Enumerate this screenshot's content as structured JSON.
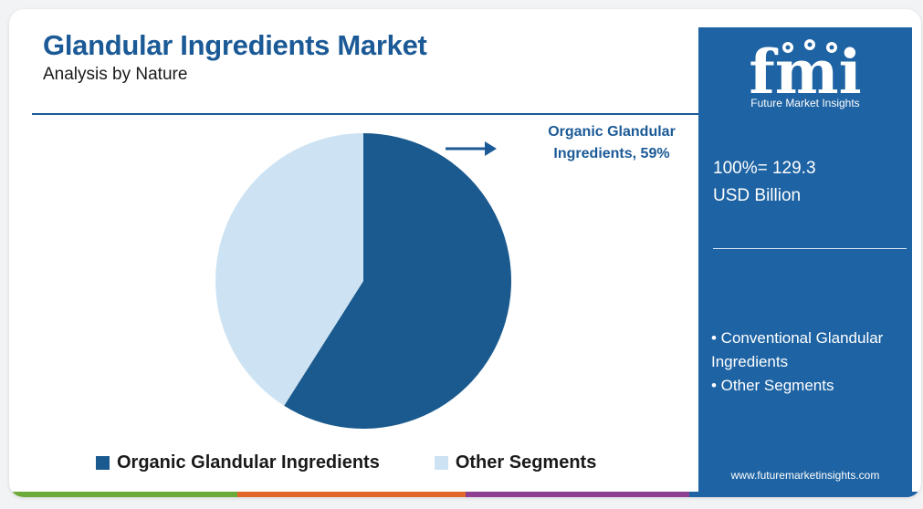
{
  "header": {
    "title": "Glandular Ingredients Market",
    "subtitle": "Analysis by Nature"
  },
  "callout": {
    "line1": "Organic Glandular",
    "line2": "Ingredients, 59%"
  },
  "chart_data": {
    "type": "pie",
    "title": "Glandular Ingredients Market",
    "subtitle": "Analysis by Nature",
    "slices": [
      {
        "label": "Organic Glandular Ingredients",
        "value": 59,
        "color": "#1b5a8e"
      },
      {
        "label": "Other Segments",
        "value": 41,
        "color": "#cde3f3"
      }
    ],
    "legend_position": "bottom"
  },
  "legend": [
    {
      "label": "Organic Glandular Ingredients",
      "color": "#1b5a8e"
    },
    {
      "label": "Other Segments",
      "color": "#cde3f3"
    }
  ],
  "panel": {
    "logo_text": "fmi",
    "logo_tagline": "Future Market Insights",
    "total_line1": "100%= 129.3",
    "total_line2": "USD Billion",
    "segments": [
      "• Conventional Glandular Ingredients",
      "• Other Segments"
    ],
    "url": "www.futuremarketinsights.com",
    "background_color": "#1e63a3"
  },
  "accent_colors": {
    "title": "#1b5a96",
    "bottom_bar": [
      "#6cab3a",
      "#e2672b",
      "#8d3f91",
      "#1e63a3"
    ]
  }
}
